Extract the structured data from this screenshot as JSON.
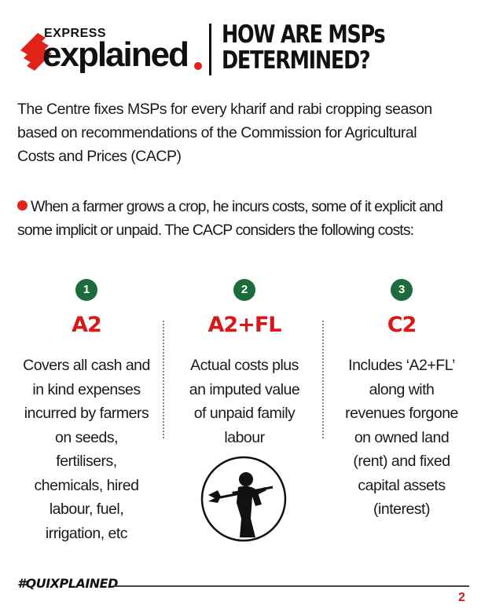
{
  "header": {
    "brand_top": "EXPRESS",
    "brand_main": "explained",
    "title_line1": "HOW ARE MSPs",
    "title_line2": "DETERMINED?"
  },
  "intro_lines": [
    "The Centre fixes MSPs for every kharif and rabi cropping season",
    "based on recommendations of the Commission for Agricultural",
    "Costs and Prices (CACP)"
  ],
  "bullet_lines": [
    "When a farmer grows a crop, he incurs costs, some of it explicit and",
    "some implicit or unpaid. The CACP considers the following costs:"
  ],
  "columns": [
    {
      "number": "1",
      "title": "A2",
      "lines": [
        "Covers all cash and",
        "in kind expenses",
        "incurred by farmers",
        "on seeds,",
        "fertilisers,",
        "chemicals, hired",
        "labour, fuel,",
        "irrigation, etc"
      ]
    },
    {
      "number": "2",
      "title": "A2+FL",
      "lines": [
        "Actual costs plus",
        "an imputed value",
        "of unpaid family",
        "labour"
      ]
    },
    {
      "number": "3",
      "title": "C2",
      "lines": [
        "Includes ‘A2+FL’",
        "along with",
        "revenues forgone",
        "on owned land",
        "(rent) and fixed",
        "capital assets",
        "(interest)"
      ]
    }
  ],
  "footer": {
    "hashtag": "#QUIXPLAINED",
    "page": "2"
  },
  "colors": {
    "accent_red": "#e2231a",
    "title_red": "#d7191c",
    "badge_green": "#1c6b3a"
  },
  "icons": {
    "logo": "express-chevron-logo",
    "illustration": "farmer-with-pickaxe-icon"
  }
}
